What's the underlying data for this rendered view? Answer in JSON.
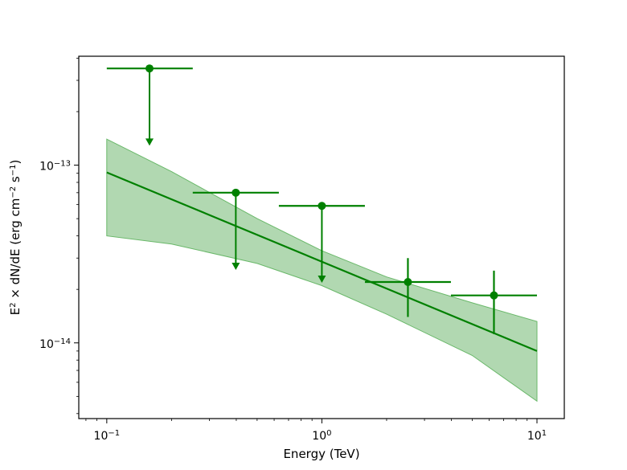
{
  "chart_data": {
    "type": "scatter",
    "title": "",
    "xlabel": "Energy (TeV)",
    "ylabel": {
      "prefix": "E",
      "prefix_sup": "2",
      "middle": " × dN/dE (erg cm",
      "unit_sup_1": "−2",
      "after": " s",
      "unit_sup_2": "−1",
      "close": ")"
    },
    "xscale": "log",
    "yscale": "log",
    "xlim": [
      0.0741,
      13.4
    ],
    "ylim": [
      3.75e-15,
      4.1e-13
    ],
    "x_ticks": [
      {
        "value": 0.1,
        "base": "10",
        "exp": "−1"
      },
      {
        "value": 1,
        "base": "10",
        "exp": "0"
      },
      {
        "value": 10,
        "base": "10",
        "exp": "1"
      }
    ],
    "y_ticks": [
      {
        "value": 1e-14,
        "base": "10",
        "exp": "−14"
      },
      {
        "value": 1e-13,
        "base": "10",
        "exp": "−13"
      }
    ],
    "colors": {
      "series": "#008000",
      "band_fill": "#90c890",
      "band_edge": "#6ab86a"
    },
    "flux_points": [
      {
        "x": 0.158,
        "xlo": 0.1,
        "xhi": 0.251,
        "y": 3.5e-13,
        "upper_limit": true,
        "ul_to": 1.3e-13
      },
      {
        "x": 0.398,
        "xlo": 0.251,
        "xhi": 0.631,
        "y": 7e-14,
        "upper_limit": true,
        "ul_to": 2.6e-14
      },
      {
        "x": 1.0,
        "xlo": 0.631,
        "xhi": 1.585,
        "y": 5.9e-14,
        "upper_limit": true,
        "ul_to": 2.2e-14
      },
      {
        "x": 2.512,
        "xlo": 1.585,
        "xhi": 3.981,
        "y": 2.2e-14,
        "upper_limit": false,
        "ylo": 1.4e-14,
        "yhi": 3e-14
      },
      {
        "x": 6.31,
        "xlo": 3.981,
        "xhi": 10.0,
        "y": 1.85e-14,
        "upper_limit": false,
        "ylo": 1.12e-14,
        "yhi": 2.55e-14
      }
    ],
    "model_line": {
      "x": [
        0.1,
        10.0
      ],
      "y": [
        9.1e-14,
        9e-15
      ]
    },
    "error_band": {
      "x": [
        0.1,
        0.2,
        0.5,
        1.0,
        2.0,
        5.0,
        10.0
      ],
      "lower": [
        4e-14,
        3.6e-14,
        2.8e-14,
        2.1e-14,
        1.45e-14,
        8.5e-15,
        4.7e-15
      ],
      "upper": [
        1.4e-13,
        9.2e-14,
        5e-14,
        3.3e-14,
        2.35e-14,
        1.68e-14,
        1.32e-14
      ]
    }
  }
}
